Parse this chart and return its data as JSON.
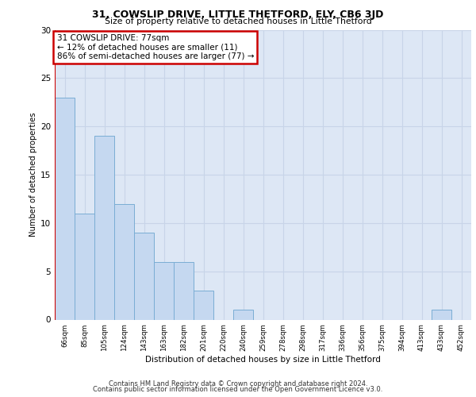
{
  "title": "31, COWSLIP DRIVE, LITTLE THETFORD, ELY, CB6 3JD",
  "subtitle": "Size of property relative to detached houses in Little Thetford",
  "xlabel": "Distribution of detached houses by size in Little Thetford",
  "ylabel": "Number of detached properties",
  "categories": [
    "66sqm",
    "85sqm",
    "105sqm",
    "124sqm",
    "143sqm",
    "163sqm",
    "182sqm",
    "201sqm",
    "220sqm",
    "240sqm",
    "259sqm",
    "278sqm",
    "298sqm",
    "317sqm",
    "336sqm",
    "356sqm",
    "375sqm",
    "394sqm",
    "413sqm",
    "433sqm",
    "452sqm"
  ],
  "values": [
    23,
    11,
    19,
    12,
    9,
    6,
    6,
    3,
    0,
    1,
    0,
    0,
    0,
    0,
    0,
    0,
    0,
    0,
    0,
    1,
    0
  ],
  "bar_color": "#c5d8f0",
  "bar_edge_color": "#7aadd4",
  "annotation_text": "31 COWSLIP DRIVE: 77sqm\n← 12% of detached houses are smaller (11)\n86% of semi-detached houses are larger (77) →",
  "annotation_box_color": "#ffffff",
  "annotation_box_edge_color": "#cc0000",
  "vertical_line_color": "#cc0000",
  "ylim": [
    0,
    30
  ],
  "yticks": [
    0,
    5,
    10,
    15,
    20,
    25,
    30
  ],
  "grid_color": "#c8d4e8",
  "bg_color": "#dde7f5",
  "footer_line1": "Contains HM Land Registry data © Crown copyright and database right 2024.",
  "footer_line2": "Contains public sector information licensed under the Open Government Licence v3.0."
}
